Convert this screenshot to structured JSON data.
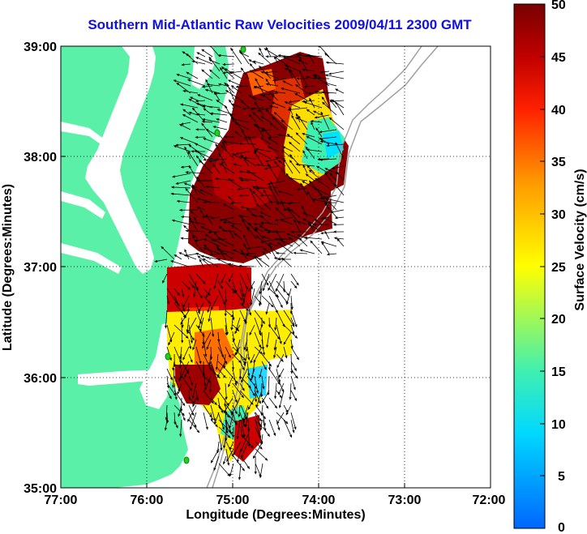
{
  "title": "Southern Mid-Atlantic Raw Velocities 2009/04/11 2300 GMT",
  "map": {
    "x_axis": {
      "label": "Longitude (Degrees:Minutes)",
      "ticks": [
        "77:00",
        "76:00",
        "75:00",
        "74:00",
        "73:00",
        "72:00"
      ]
    },
    "y_axis": {
      "label": "Latitude (Degrees:Minutes)",
      "ticks": [
        "39:00",
        "38:00",
        "37:00",
        "36:00",
        "35:00"
      ]
    },
    "grid": "dotted",
    "land_color": "#5af0a8",
    "station_color": "#22cc22"
  },
  "colorbar": {
    "label": "Surface Velocity (cm/s)",
    "ticks": [
      "50",
      "45",
      "40",
      "35",
      "30",
      "25",
      "20",
      "15",
      "10",
      "5",
      "0"
    ],
    "range": [
      0,
      50
    ],
    "colors": [
      "#0066ff",
      "#00e0ff",
      "#40f0a0",
      "#ffff00",
      "#ff9900",
      "#ff2000",
      "#c00000",
      "#780000"
    ]
  }
}
